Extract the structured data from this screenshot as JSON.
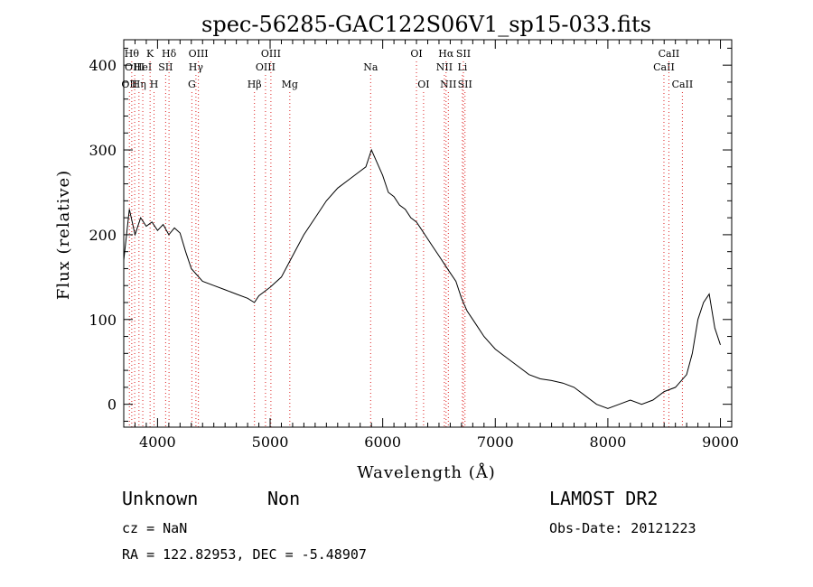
{
  "chart_data": {
    "type": "line",
    "title": "spec-56285-GAC122S06V1_sp15-033.fits",
    "xlabel": "Wavelength (Å)",
    "ylabel": "Flux (relative)",
    "xlim": [
      3700,
      9100
    ],
    "ylim": [
      -27,
      430
    ],
    "xticks": [
      4000,
      5000,
      6000,
      7000,
      8000,
      9000
    ],
    "yticks": [
      0,
      100,
      200,
      300,
      400
    ],
    "grid": false,
    "series": [
      {
        "x": [
          3700,
          3750,
          3800,
          3850,
          3900,
          3950,
          4000,
          4050,
          4100,
          4150,
          4200,
          4250,
          4300,
          4400,
          4500,
          4600,
          4700,
          4800,
          4860,
          4900,
          5000,
          5100,
          5200,
          5300,
          5400,
          5500,
          5600,
          5700,
          5800,
          5850,
          5900,
          5950,
          6000,
          6050,
          6100,
          6150,
          6200,
          6250,
          6300,
          6350,
          6400,
          6450,
          6500,
          6550,
          6600,
          6650,
          6700,
          6750,
          6800,
          6850,
          6900,
          7000,
          7100,
          7200,
          7300,
          7400,
          7500,
          7600,
          7700,
          7800,
          7900,
          8000,
          8100,
          8200,
          8300,
          8400,
          8500,
          8600,
          8700,
          8750,
          8800,
          8850,
          8900,
          8950,
          9000
        ],
        "y": [
          170,
          230,
          200,
          220,
          210,
          215,
          205,
          212,
          200,
          208,
          202,
          180,
          160,
          145,
          140,
          135,
          130,
          125,
          120,
          128,
          138,
          150,
          175,
          200,
          220,
          240,
          255,
          265,
          275,
          280,
          300,
          285,
          270,
          250,
          245,
          235,
          230,
          220,
          215,
          205,
          195,
          185,
          175,
          165,
          155,
          145,
          125,
          110,
          100,
          90,
          80,
          65,
          55,
          45,
          35,
          30,
          28,
          25,
          20,
          10,
          0,
          -5,
          0,
          5,
          0,
          5,
          15,
          20,
          35,
          60,
          100,
          120,
          130,
          90,
          70
        ]
      }
    ],
    "lines": [
      {
        "x": 3750,
        "label": "OII",
        "row": 3
      },
      {
        "x": 3771,
        "label": "Hθ",
        "row": 1
      },
      {
        "x": 3797,
        "label": "OIII",
        "row": 2
      },
      {
        "x": 3835,
        "label": "Hη",
        "row": 3
      },
      {
        "x": 3869,
        "label": "HeI",
        "row": 2
      },
      {
        "x": 3934,
        "label": "K",
        "row": 1
      },
      {
        "x": 3969,
        "label": "H",
        "row": 3
      },
      {
        "x": 4072,
        "label": "SII",
        "row": 2
      },
      {
        "x": 4102,
        "label": "Hδ",
        "row": 1
      },
      {
        "x": 4305,
        "label": "G",
        "row": 3
      },
      {
        "x": 4341,
        "label": "Hγ",
        "row": 2
      },
      {
        "x": 4363,
        "label": "OIII",
        "row": 1
      },
      {
        "x": 4861,
        "label": "Hβ",
        "row": 3
      },
      {
        "x": 4959,
        "label": "OIII",
        "row": 2
      },
      {
        "x": 5007,
        "label": "OIII",
        "row": 1
      },
      {
        "x": 5175,
        "label": "Mg",
        "row": 3
      },
      {
        "x": 5893,
        "label": "Na",
        "row": 2
      },
      {
        "x": 6300,
        "label": "OI",
        "row": 1
      },
      {
        "x": 6363,
        "label": "OI",
        "row": 3
      },
      {
        "x": 6548,
        "label": "NII",
        "row": 2
      },
      {
        "x": 6563,
        "label": "Hα",
        "row": 1
      },
      {
        "x": 6583,
        "label": "NII",
        "row": 3
      },
      {
        "x": 6708,
        "label": "Li",
        "row": 2
      },
      {
        "x": 6717,
        "label": "SII",
        "row": 1
      },
      {
        "x": 6731,
        "label": "SII",
        "row": 3
      },
      {
        "x": 8498,
        "label": "CaII",
        "row": 2
      },
      {
        "x": 8542,
        "label": "CaII",
        "row": 1
      },
      {
        "x": 8662,
        "label": "CaII",
        "row": 3
      }
    ]
  },
  "footer": {
    "class_label": "Unknown",
    "subclass_label": "Non",
    "survey": "LAMOST DR2",
    "cz": "cz = NaN",
    "obs_date": "Obs-Date: 20121223",
    "coords": "RA = 122.82953, DEC =  -5.48907"
  }
}
